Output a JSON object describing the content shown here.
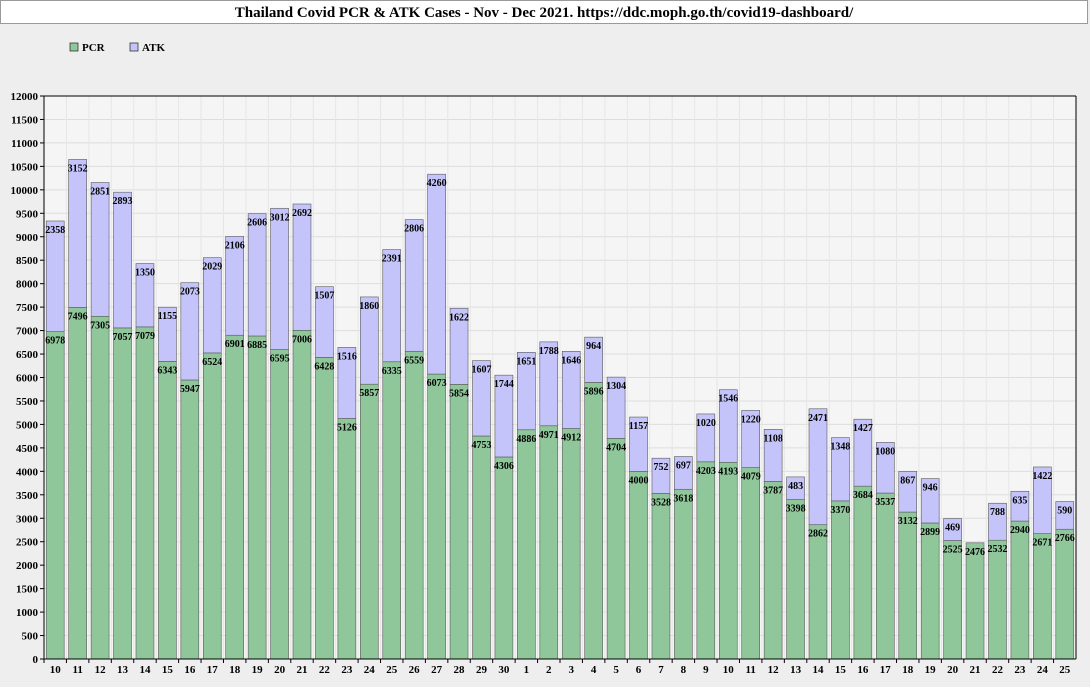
{
  "window_title": "Thailand Covid PCR & ATK Cases - Nov - Dec 2021. https://ddc.moph.go.th/covid19-dashboard/",
  "chart_data": {
    "type": "bar",
    "stacked": true,
    "title": "Thailand Covid PCR & ATK Cases - Nov - Dec 2021. https://ddc.moph.go.th/covid19-dashboard/",
    "xlabel": "",
    "ylabel": "",
    "ylim": [
      0,
      12000
    ],
    "yticks": [
      0,
      500,
      1000,
      1500,
      2000,
      2500,
      3000,
      3500,
      4000,
      4500,
      5000,
      5500,
      6000,
      6500,
      7000,
      7500,
      8000,
      8500,
      9000,
      9500,
      10000,
      10500,
      11000,
      11500,
      12000
    ],
    "grid": true,
    "legend_position": "top-left",
    "categories": [
      "10",
      "11",
      "12",
      "13",
      "14",
      "15",
      "16",
      "17",
      "18",
      "19",
      "20",
      "21",
      "22",
      "23",
      "24",
      "25",
      "26",
      "27",
      "28",
      "29",
      "30",
      "1",
      "2",
      "3",
      "4",
      "5",
      "6",
      "7",
      "8",
      "9",
      "10",
      "11",
      "12",
      "13",
      "14",
      "15",
      "16",
      "17",
      "18",
      "19",
      "20",
      "21",
      "22",
      "23",
      "24",
      "25"
    ],
    "series": [
      {
        "name": "PCR",
        "color": "#8fc79a",
        "values": [
          6978,
          7496,
          7305,
          7057,
          7079,
          6343,
          5947,
          6524,
          6901,
          6885,
          6595,
          7006,
          6428,
          5126,
          5857,
          6335,
          6559,
          6073,
          5854,
          4753,
          4306,
          4886,
          4971,
          4912,
          5896,
          4704,
          4000,
          3528,
          3618,
          4203,
          4193,
          4079,
          3787,
          3398,
          2862,
          3370,
          3684,
          3537,
          3132,
          2899,
          2525,
          2476,
          2532,
          2940,
          2671,
          2766
        ]
      },
      {
        "name": "ATK",
        "color": "#c4c4fa",
        "values": [
          2358,
          3152,
          2851,
          2893,
          1350,
          1155,
          2073,
          2029,
          2106,
          2606,
          3012,
          2692,
          1507,
          1516,
          1860,
          2391,
          2806,
          4260,
          1622,
          1607,
          1744,
          1651,
          1788,
          1646,
          964,
          1304,
          1157,
          752,
          697,
          1020,
          1546,
          1220,
          1108,
          483,
          2471,
          1348,
          1427,
          1080,
          867,
          946,
          469,
          null,
          788,
          635,
          1422,
          590
        ]
      }
    ]
  }
}
